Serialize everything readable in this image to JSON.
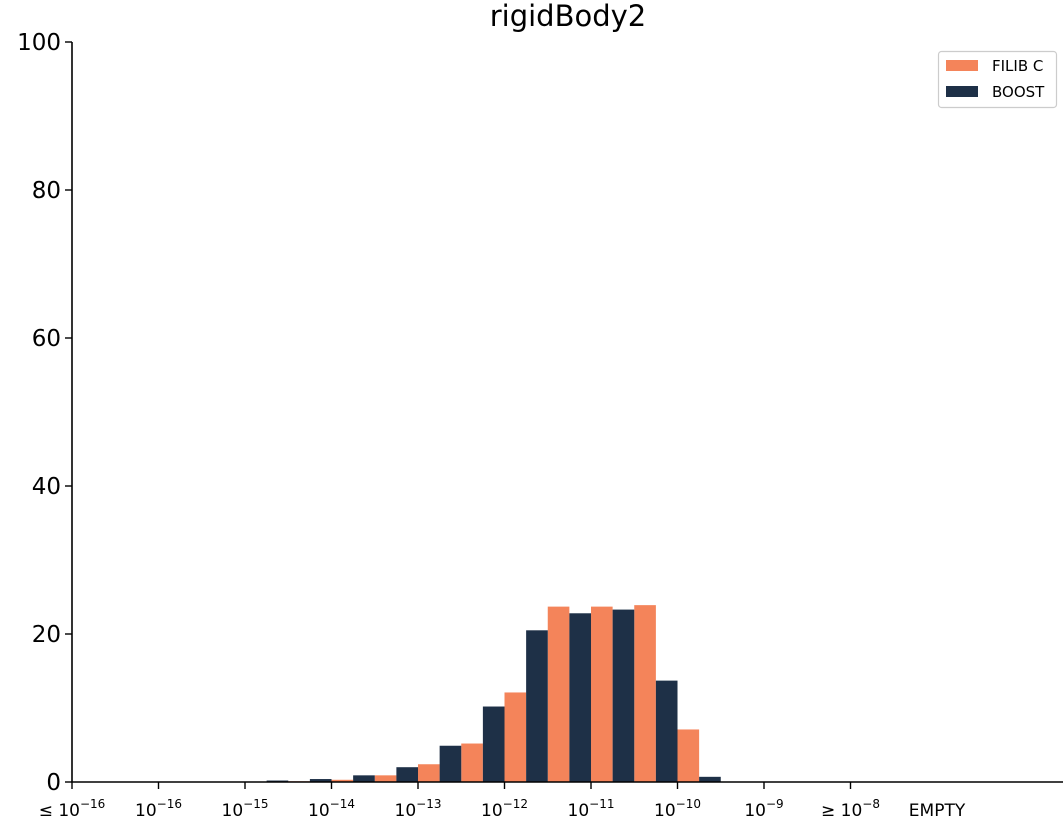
{
  "chart_data": {
    "type": "bar",
    "title": "rigidBody2",
    "xlabel": "",
    "ylabel": "",
    "ylim": [
      0,
      100
    ],
    "yticks": [
      "0",
      "20",
      "40",
      "60",
      "80",
      "100"
    ],
    "ytick_values": [
      0,
      20,
      40,
      60,
      80,
      100
    ],
    "x_bin_edges": [
      {
        "pre": "≤ 10",
        "exp": "−16"
      },
      {
        "pre": "10",
        "exp": "−16"
      },
      {
        "pre": "10",
        "exp": "−15"
      },
      {
        "pre": "10",
        "exp": "−14"
      },
      {
        "pre": "10",
        "exp": "−13"
      },
      {
        "pre": "10",
        "exp": "−12"
      },
      {
        "pre": "10",
        "exp": "−11"
      },
      {
        "pre": "10",
        "exp": "−10"
      },
      {
        "pre": "10",
        "exp": "−9"
      },
      {
        "pre": "≥ 10",
        "exp": "−8"
      },
      {
        "pre": "EMPTY",
        "exp": ""
      }
    ],
    "bins_per_decade": 2,
    "grid": false,
    "legend_position": "top-right",
    "series": [
      {
        "name": "FILIB C",
        "color": "#f4845a",
        "values": [
          0,
          0,
          0,
          0,
          0,
          0.1,
          0.3,
          0.9,
          2.4,
          5.2,
          12.1,
          23.7,
          23.7,
          23.9,
          7.1,
          0,
          0,
          0,
          0,
          0
        ]
      },
      {
        "name": "BOOST",
        "color": "#1e3047",
        "values": [
          0,
          0,
          0,
          0,
          0.2,
          0.4,
          0.9,
          2.0,
          4.9,
          10.2,
          20.5,
          22.8,
          23.3,
          13.7,
          0.7,
          0,
          0,
          0,
          0,
          0
        ]
      }
    ]
  }
}
